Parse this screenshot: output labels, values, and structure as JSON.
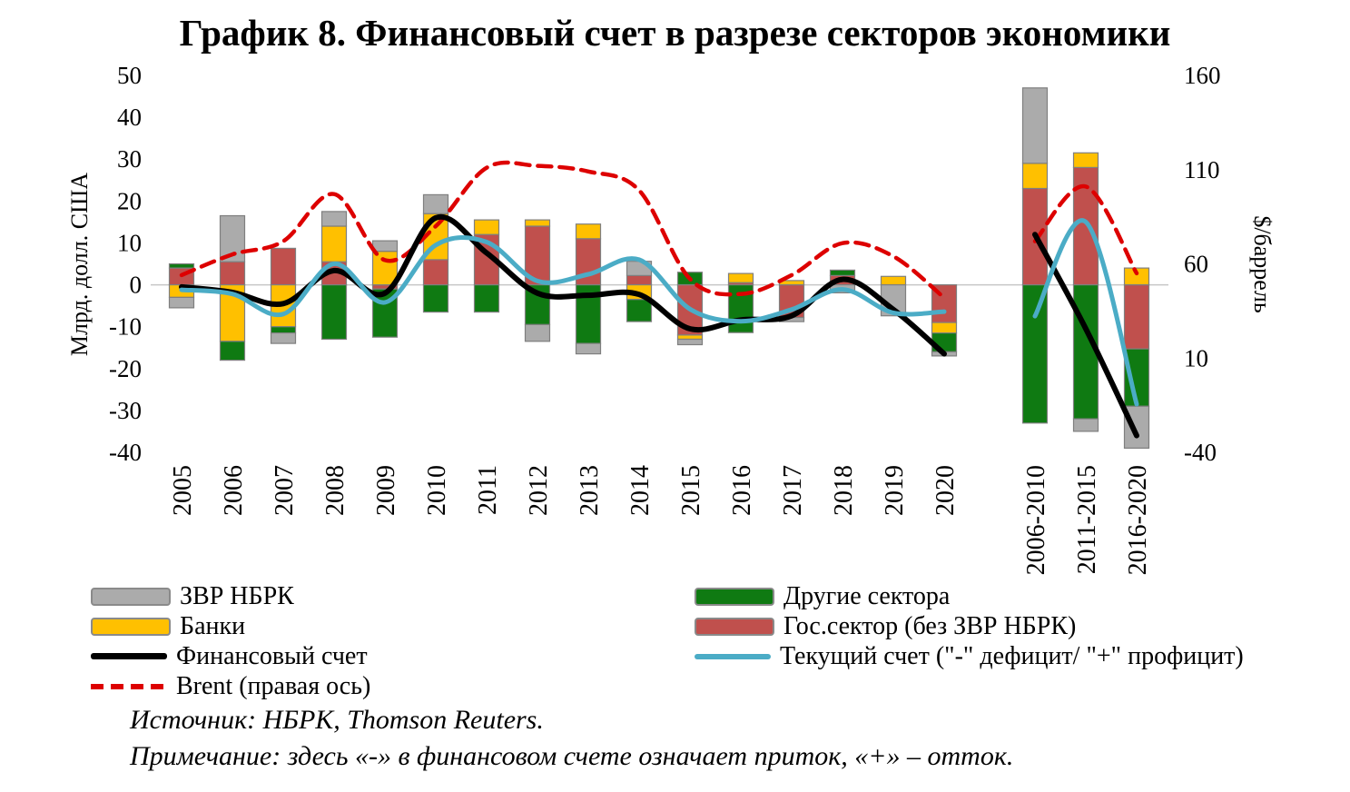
{
  "page": {
    "title": "График 8. Финансовый счет в разрезе секторов экономики",
    "source_line": "Источник: НБРК, Thomson Reuters.",
    "note_line": "Примечание: здесь «-» в финансовом счете означает приток, «+» – отток."
  },
  "legend": {
    "left": [
      {
        "label": "ЗВР НБРК",
        "swatch": "box-gray"
      },
      {
        "label": "Банки",
        "swatch": "box-yellow"
      },
      {
        "label": "Финансовый счет",
        "swatch": "line-black"
      },
      {
        "label": "Brent (правая ось)",
        "swatch": "dash-red"
      }
    ],
    "right": [
      {
        "label": "Другие сектора",
        "swatch": "box-green"
      },
      {
        "label": "Гос.сектор (без ЗВР НБРК)",
        "swatch": "box-red"
      },
      {
        "label": "Текущий счет (\"-\" дефицит/ \"+\" профицит)",
        "swatch": "line-blue"
      }
    ]
  },
  "chart_data": {
    "type": "combo-stacked-bar-line",
    "title": "График 8. Финансовый счет в разрезе секторов экономики",
    "left_axis": {
      "label": "Млрд. долл. США",
      "min": -40,
      "max": 50,
      "ticks": [
        50,
        40,
        30,
        20,
        10,
        0,
        -10,
        -20,
        -30,
        -40
      ]
    },
    "right_axis": {
      "label": "$/баррель",
      "min": -40,
      "max": 160,
      "ticks": [
        160,
        110,
        60,
        10,
        -40
      ]
    },
    "categories": [
      "2005",
      "2006",
      "2007",
      "2008",
      "2009",
      "2010",
      "2011",
      "2012",
      "2013",
      "2014",
      "2015",
      "2016",
      "2017",
      "2018",
      "2019",
      "2020"
    ],
    "agg_categories": [
      "2006-2010",
      "2011-2015",
      "2016-2020"
    ],
    "stack_order": [
      "gov",
      "banks",
      "other",
      "nbrk"
    ],
    "bar_series": [
      {
        "id": "nbrk",
        "name": "ЗВР НБРК",
        "color": "#ABABAB",
        "values": [
          -2.5,
          11,
          -2.5,
          3.5,
          2.5,
          4.5,
          0,
          -4,
          -2.5,
          3.4,
          -1.3,
          0,
          -1,
          -1.9,
          -7.4,
          -1
        ],
        "agg_values": [
          18,
          -3,
          -10
        ]
      },
      {
        "id": "banks",
        "name": "Банки",
        "color": "#FFC000",
        "values": [
          -3,
          -13.5,
          -10,
          8.5,
          8,
          11,
          3.5,
          1.5,
          3.5,
          -3.5,
          -1,
          2.2,
          1,
          0,
          2,
          -2.5
        ],
        "agg_values": [
          6,
          3.5,
          4
        ]
      },
      {
        "id": "other",
        "name": "Другие сектора",
        "color": "#0F7A12",
        "values": [
          1,
          -4.5,
          -1.5,
          -13,
          -11.5,
          -6.5,
          -6.5,
          -9.5,
          -14,
          -5.3,
          3,
          -11.4,
          0,
          1.3,
          0,
          -4.5
        ],
        "agg_values": [
          -33,
          -32,
          -13.7
        ]
      },
      {
        "id": "gov",
        "name": "Гос.сектор (без ЗВР НБРК)",
        "color": "#C0504D",
        "values": [
          4,
          5.5,
          8.7,
          5.5,
          -1,
          6,
          12,
          14,
          11,
          2.2,
          -12,
          0.5,
          -7.8,
          2.2,
          0,
          -9
        ],
        "agg_values": [
          23,
          28,
          -15.3
        ]
      }
    ],
    "line_series": [
      {
        "id": "brent",
        "name": "Brent (правая ось)",
        "color": "#DD0000",
        "axis": "right",
        "dashed": true,
        "values": [
          54,
          65,
          72,
          97,
          62,
          80,
          111,
          112,
          109,
          99,
          52,
          44,
          54,
          71,
          64,
          42
        ],
        "agg_values": [
          72,
          101,
          55
        ]
      },
      {
        "id": "fin",
        "name": "Финансовый счет",
        "color": "#000000",
        "axis": "left",
        "dashed": false,
        "values": [
          -0.5,
          -1.8,
          -4.5,
          3.4,
          -2,
          16,
          7.6,
          -2,
          -2.5,
          -2.3,
          -10.5,
          -8.4,
          -7.4,
          1.3,
          -5.9,
          -16.5
        ],
        "agg_values": [
          12,
          -10.5,
          -36
        ]
      },
      {
        "id": "ca",
        "name": "Текущий счет (\"-\" дефицит/ \"+\" профицит)",
        "color": "#4BACC6",
        "axis": "left",
        "dashed": false,
        "values": [
          -1.2,
          -2.2,
          -7,
          5,
          -4.2,
          9.5,
          10.2,
          0.9,
          2.5,
          6,
          -5.8,
          -8.7,
          -5.9,
          -1.1,
          -6.7,
          -6.4
        ],
        "agg_values": [
          -7.5,
          15,
          -28.5
        ]
      }
    ],
    "colors": {
      "zero_line": "#C6C6C6",
      "bar_border": "#7F7F7F"
    }
  }
}
